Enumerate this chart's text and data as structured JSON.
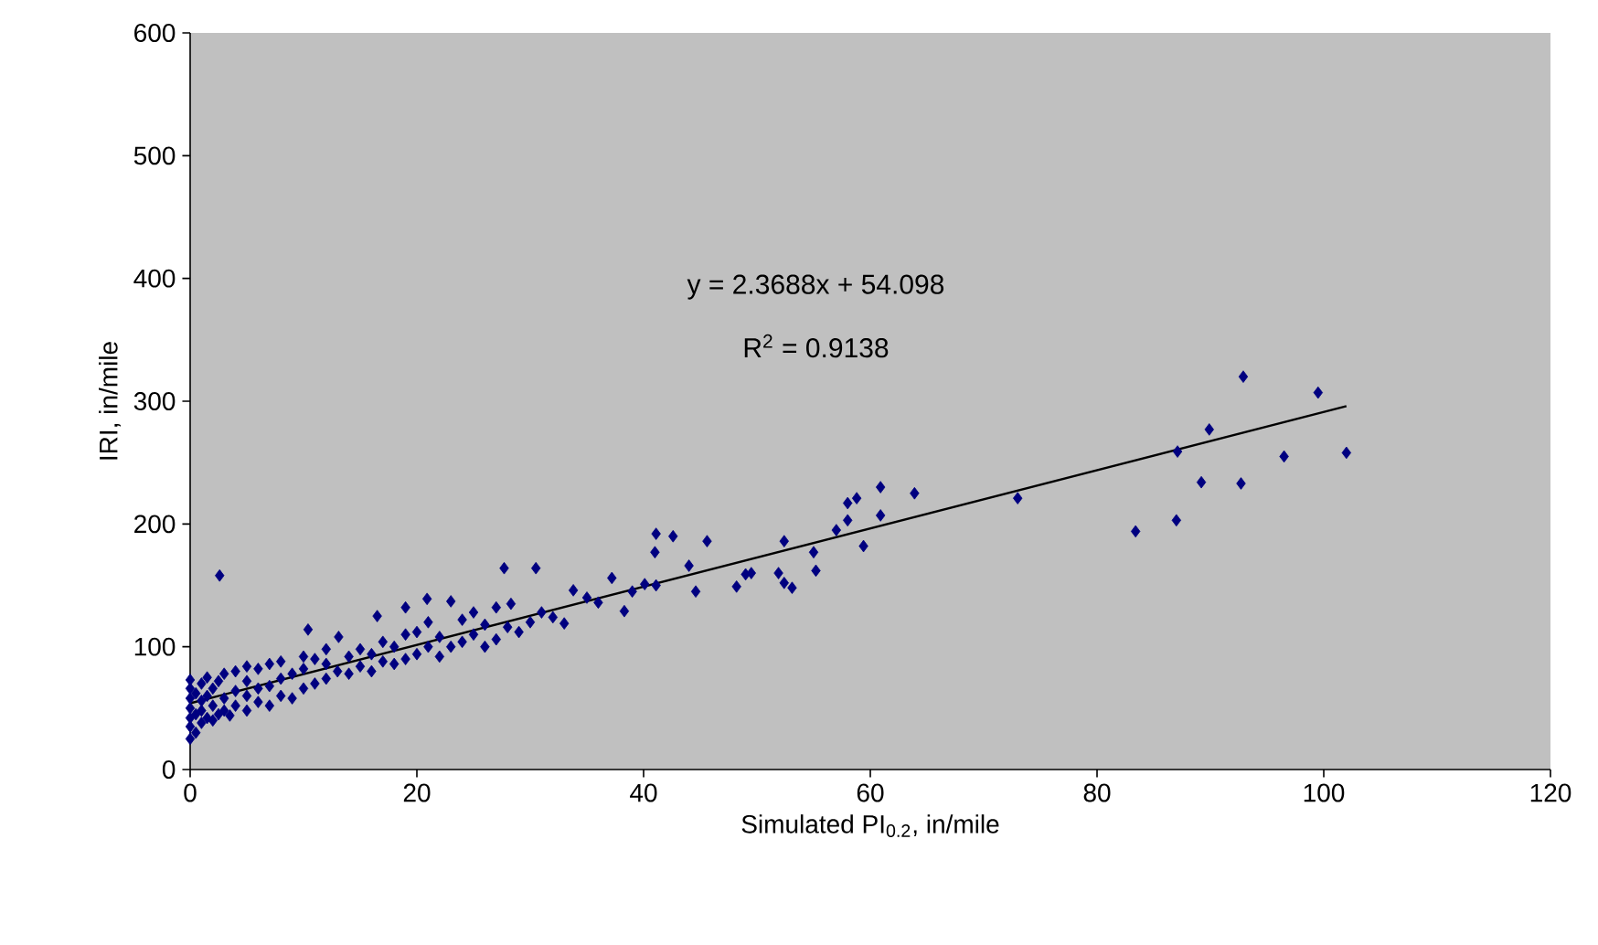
{
  "chart_data": {
    "type": "scatter",
    "xlabel": "Simulated PI$_{0.2}$, in/mile",
    "ylabel": "IRI, in/mile",
    "xlim": [
      0,
      120
    ],
    "xticks": [
      0,
      20,
      40,
      60,
      80,
      100,
      120
    ],
    "ylim": [
      0,
      600
    ],
    "yticks": [
      0,
      100,
      200,
      300,
      400,
      500,
      600
    ],
    "grid": false,
    "annotations": [
      "y = 2.3688x + 54.098",
      "R$^{2}$ = 0.9138"
    ],
    "series": [
      {
        "color": "#000080",
        "marker": "diamond",
        "x": [
          0,
          0,
          0,
          0,
          0,
          0,
          0,
          0.5,
          0.5,
          0.5,
          1,
          1,
          1,
          1,
          1.5,
          1.5,
          1.5,
          2,
          2,
          2,
          2.6,
          2.5,
          2.5,
          3,
          3,
          3,
          3.5,
          4,
          4,
          4,
          5,
          5,
          5,
          5,
          6,
          6,
          6,
          7,
          7,
          7,
          8,
          8,
          8,
          9,
          9,
          10,
          10,
          10,
          10.4,
          11,
          11,
          12,
          12,
          12,
          13,
          13.1,
          14,
          14,
          15,
          15,
          16,
          16,
          16.5,
          17,
          17,
          18,
          18,
          19,
          19,
          19,
          20,
          20,
          20.9,
          21,
          21,
          22,
          22,
          23,
          23,
          24,
          24,
          25,
          25,
          26,
          26,
          27,
          27,
          27.7,
          28.3,
          28,
          29,
          30,
          30.5,
          31,
          32,
          33,
          33.8,
          35,
          36,
          37.2,
          38.3,
          39,
          40.1,
          41.1,
          41,
          41.1,
          42.6,
          44,
          44.6,
          45.6,
          48.2,
          49,
          49.5,
          52.4,
          51.9,
          52.4,
          53.1,
          55,
          55.2,
          57,
          58,
          58,
          58.8,
          59.4,
          60.9,
          60.9,
          63.9,
          73,
          83.4,
          87,
          87.1,
          89.2,
          89.9,
          92.7,
          92.9,
          96.5,
          99.5,
          102
        ],
        "values": [
          25,
          35,
          42,
          50,
          58,
          66,
          73,
          30,
          45,
          62,
          38,
          48,
          56,
          70,
          42,
          60,
          75,
          40,
          52,
          66,
          158,
          45,
          72,
          48,
          58,
          78,
          44,
          52,
          64,
          80,
          48,
          60,
          72,
          84,
          55,
          66,
          82,
          52,
          68,
          86,
          60,
          74,
          88,
          58,
          78,
          66,
          82,
          92,
          114,
          70,
          90,
          74,
          86,
          98,
          80,
          108,
          78,
          92,
          84,
          98,
          80,
          94,
          125,
          88,
          104,
          86,
          100,
          90,
          110,
          132,
          94,
          112,
          139,
          100,
          120,
          92,
          108,
          100,
          137,
          104,
          122,
          110,
          128,
          100,
          118,
          106,
          132,
          164,
          135,
          116,
          112,
          120,
          164,
          128,
          124,
          119,
          146,
          140,
          136,
          156,
          129,
          145,
          151,
          150,
          177,
          192,
          190,
          166,
          145,
          186,
          149,
          159,
          160,
          186,
          160,
          152,
          148,
          177,
          162,
          195,
          203,
          217,
          221,
          182,
          207,
          230,
          225,
          221,
          194,
          203,
          259,
          234,
          277,
          233,
          320,
          255,
          307,
          258
        ]
      },
      {
        "type": "line",
        "color": "#000000",
        "line_style": "solid",
        "marker": "none",
        "x": [
          0,
          102
        ],
        "values": [
          54,
          296
        ]
      }
    ]
  }
}
